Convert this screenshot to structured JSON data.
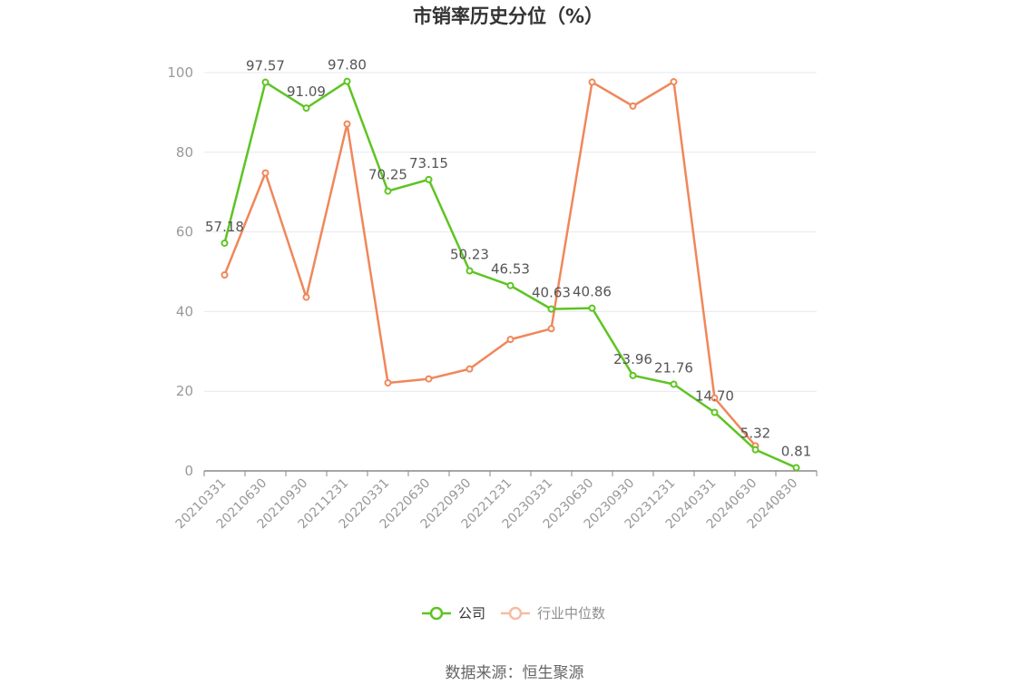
{
  "chart_data": {
    "type": "line",
    "title": "市销率历史分位（%）",
    "x": [
      "20210331",
      "20210630",
      "20210930",
      "20211231",
      "20220331",
      "20220630",
      "20220930",
      "20221231",
      "20230331",
      "20230630",
      "20230930",
      "20231231",
      "20240331",
      "20240630",
      "20240830"
    ],
    "ylim": [
      0,
      100
    ],
    "yticks": [
      0,
      20,
      40,
      60,
      80,
      100
    ],
    "grid": true,
    "legend_position": "bottom",
    "series": [
      {
        "name": "公司",
        "color": "#5ec423",
        "values": [
          57.18,
          97.57,
          91.09,
          97.8,
          70.25,
          73.15,
          50.23,
          46.53,
          40.63,
          40.86,
          23.96,
          21.76,
          14.7,
          5.32,
          0.81
        ],
        "labels": [
          "57.18",
          "97.57",
          "91.09",
          "97.80",
          "70.25",
          "73.15",
          "50.23",
          "46.53",
          "40.63",
          "40.86",
          "23.96",
          "21.76",
          "14.70",
          "5.32",
          "0.81"
        ]
      },
      {
        "name": "行业中位数",
        "color": "#f0875a",
        "values": [
          49.2,
          74.8,
          43.6,
          87.1,
          22.1,
          23.1,
          25.6,
          33.0,
          35.7,
          97.6,
          91.6,
          97.7,
          18.3,
          6.3,
          null
        ]
      }
    ]
  },
  "source": "数据来源：恒生聚源"
}
